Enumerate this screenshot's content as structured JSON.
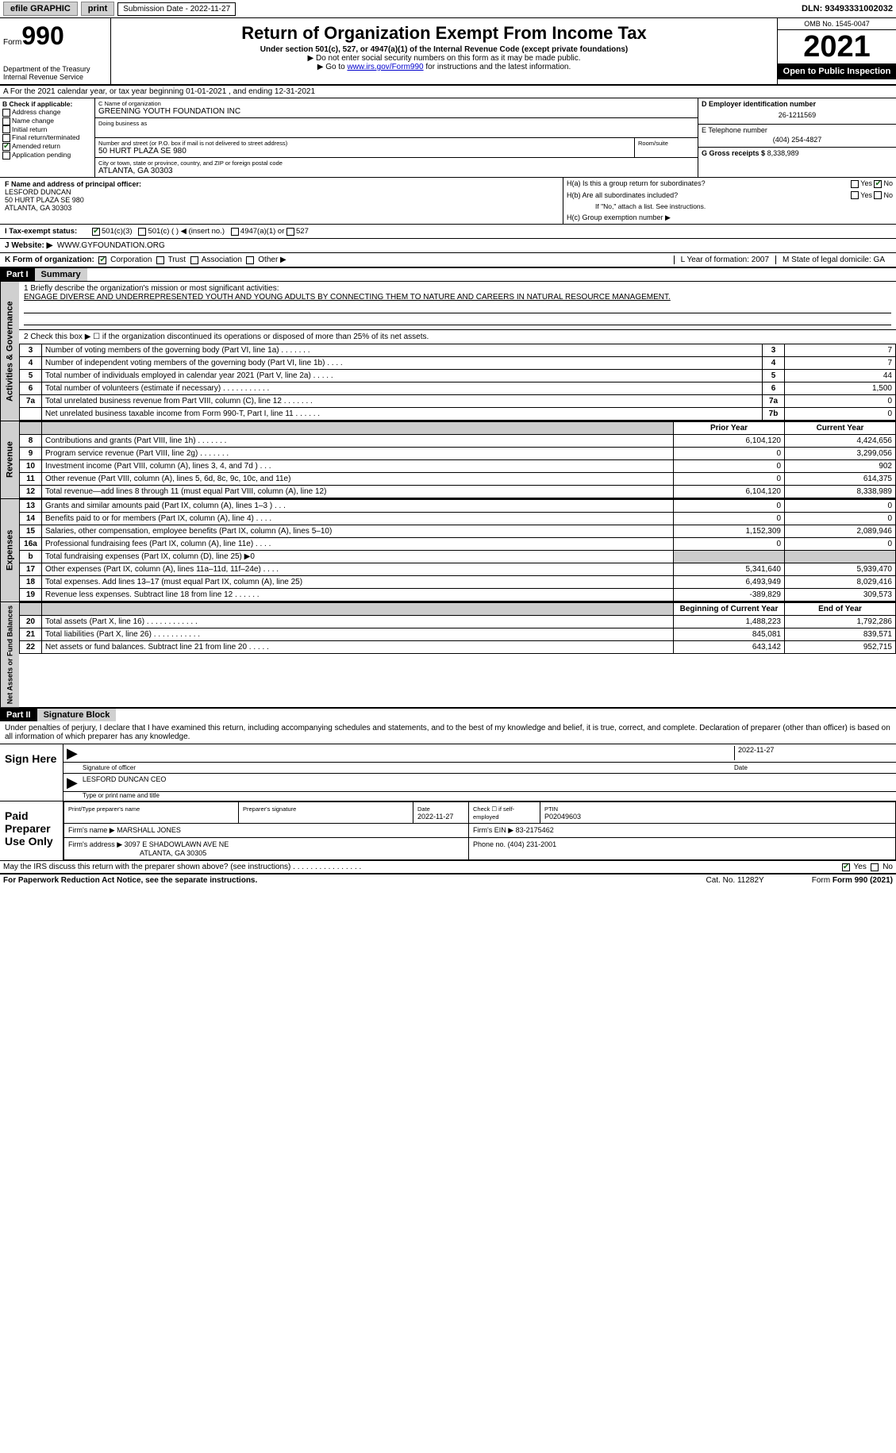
{
  "topbar": {
    "efile": "efile GRAPHIC",
    "print": "print",
    "submission": "Submission Date - 2022-11-27",
    "dln": "DLN: 93493331002032"
  },
  "header": {
    "form_label": "Form",
    "form_num": "990",
    "dept": "Department of the Treasury\nInternal Revenue Service",
    "title": "Return of Organization Exempt From Income Tax",
    "subtitle": "Under section 501(c), 527, or 4947(a)(1) of the Internal Revenue Code (except private foundations)",
    "note1": "▶ Do not enter social security numbers on this form as it may be made public.",
    "note2_pre": "▶ Go to ",
    "note2_link": "www.irs.gov/Form990",
    "note2_post": " for instructions and the latest information.",
    "omb": "OMB No. 1545-0047",
    "year": "2021",
    "inspect": "Open to Public\nInspection"
  },
  "section_a": "A For the 2021 calendar year, or tax year beginning 01-01-2021     , and ending 12-31-2021",
  "block_b": {
    "title": "B Check if applicable:",
    "addr": "Address change",
    "name": "Name change",
    "initial": "Initial return",
    "final": "Final return/terminated",
    "amended": "Amended return",
    "app": "Application pending"
  },
  "block_c": {
    "name_lbl": "C Name of organization",
    "name": "GREENING YOUTH FOUNDATION INC",
    "dba_lbl": "Doing business as",
    "dba": "",
    "street_lbl": "Number and street (or P.O. box if mail is not delivered to street address)",
    "street": "50 HURT PLAZA SE 980",
    "room_lbl": "Room/suite",
    "city_lbl": "City or town, state or province, country, and ZIP or foreign postal code",
    "city": "ATLANTA, GA  30303"
  },
  "block_d": {
    "ein_lbl": "D Employer identification number",
    "ein": "26-1211569",
    "phone_lbl": "E Telephone number",
    "phone": "(404) 254-4827",
    "gross_lbl": "G Gross receipts $",
    "gross": "8,338,989"
  },
  "block_f": {
    "lbl": "F Name and address of principal officer:",
    "name": "LESFORD DUNCAN",
    "street": "50 HURT PLAZA SE 980",
    "city": "ATLANTA, GA  30303"
  },
  "block_h": {
    "ha": "H(a)  Is this a group return for subordinates?",
    "hb": "H(b)  Are all subordinates included?",
    "hb_note": "If \"No,\" attach a list. See instructions.",
    "hc": "H(c)  Group exemption number ▶"
  },
  "tax_status": {
    "lbl": "I    Tax-exempt status:",
    "a": "501(c)(3)",
    "b": "501(c) (  ) ◀ (insert no.)",
    "c": "4947(a)(1) or",
    "d": "527"
  },
  "website": {
    "lbl": "J   Website: ▶",
    "val": "WWW.GYFOUNDATION.ORG"
  },
  "k_org": {
    "lbl": "K Form of organization:",
    "corp": "Corporation",
    "trust": "Trust",
    "assoc": "Association",
    "other": "Other ▶",
    "l": "L Year of formation: 2007",
    "m": "M State of legal domicile: GA"
  },
  "part1": {
    "hdr": "Part I",
    "title": "Summary",
    "line1_lbl": "1   Briefly describe the organization's mission or most significant activities:",
    "mission": "ENGAGE DIVERSE AND UNDERREPRESENTED YOUTH AND YOUNG ADULTS BY CONNECTING THEM TO NATURE AND CAREERS IN NATURAL RESOURCE MANAGEMENT.",
    "line2": "2   Check this box ▶ ☐ if the organization discontinued its operations or disposed of more than 25% of its net assets.",
    "rows_ag": [
      {
        "n": "3",
        "d": "Number of voting members of the governing body (Part VI, line 1a)   .    .    .    .    .    .    .",
        "b": "3",
        "v": "7"
      },
      {
        "n": "4",
        "d": "Number of independent voting members of the governing body (Part VI, line 1b)   .    .    .    .",
        "b": "4",
        "v": "7"
      },
      {
        "n": "5",
        "d": "Total number of individuals employed in calendar year 2021 (Part V, line 2a)   .    .    .    .    .",
        "b": "5",
        "v": "44"
      },
      {
        "n": "6",
        "d": "Total number of volunteers (estimate if necessary)    .    .    .    .    .    .    .    .    .    .    .",
        "b": "6",
        "v": "1,500"
      },
      {
        "n": "7a",
        "d": "Total unrelated business revenue from Part VIII, column (C), line 12   .    .    .    .    .    .    .",
        "b": "7a",
        "v": "0"
      },
      {
        "n": "",
        "d": "Net unrelated business taxable income from Form 990-T, Part I, line 11   .    .    .    .    .    .",
        "b": "7b",
        "v": "0"
      }
    ],
    "col_prior": "Prior Year",
    "col_curr": "Current Year",
    "rows_rev": [
      {
        "n": "8",
        "d": "Contributions and grants (Part VIII, line 1h)   .    .    .    .    .    .    .",
        "p": "6,104,120",
        "c": "4,424,656"
      },
      {
        "n": "9",
        "d": "Program service revenue (Part VIII, line 2g)    .    .    .    .    .    .    .",
        "p": "0",
        "c": "3,299,056"
      },
      {
        "n": "10",
        "d": "Investment income (Part VIII, column (A), lines 3, 4, and 7d )   .    .    .",
        "p": "0",
        "c": "902"
      },
      {
        "n": "11",
        "d": "Other revenue (Part VIII, column (A), lines 5, 6d, 8c, 9c, 10c, and 11e)",
        "p": "0",
        "c": "614,375"
      },
      {
        "n": "12",
        "d": "Total revenue—add lines 8 through 11 (must equal Part VIII, column (A), line 12)",
        "p": "6,104,120",
        "c": "8,338,989"
      }
    ],
    "rows_exp": [
      {
        "n": "13",
        "d": "Grants and similar amounts paid (Part IX, column (A), lines 1–3 )   .    .    .",
        "p": "0",
        "c": "0"
      },
      {
        "n": "14",
        "d": "Benefits paid to or for members (Part IX, column (A), line 4)   .    .    .    .",
        "p": "0",
        "c": "0"
      },
      {
        "n": "15",
        "d": "Salaries, other compensation, employee benefits (Part IX, column (A), lines 5–10)",
        "p": "1,152,309",
        "c": "2,089,946"
      },
      {
        "n": "16a",
        "d": "Professional fundraising fees (Part IX, column (A), line 11e)    .    .    .    .",
        "p": "0",
        "c": "0"
      },
      {
        "n": "b",
        "d": "Total fundraising expenses (Part IX, column (D), line 25) ▶0",
        "p": "",
        "c": "",
        "shade": true
      },
      {
        "n": "17",
        "d": "Other expenses (Part IX, column (A), lines 11a–11d, 11f–24e)   .    .    .    .",
        "p": "5,341,640",
        "c": "5,939,470"
      },
      {
        "n": "18",
        "d": "Total expenses. Add lines 13–17 (must equal Part IX, column (A), line 25)",
        "p": "6,493,949",
        "c": "8,029,416"
      },
      {
        "n": "19",
        "d": "Revenue less expenses. Subtract line 18 from line 12  .    .    .    .    .    .",
        "p": "-389,829",
        "c": "309,573"
      }
    ],
    "col_begin": "Beginning of Current Year",
    "col_end": "End of Year",
    "rows_net": [
      {
        "n": "20",
        "d": "Total assets (Part X, line 16)  .    .    .    .    .    .    .    .    .    .    .    .",
        "p": "1,488,223",
        "c": "1,792,286"
      },
      {
        "n": "21",
        "d": "Total liabilities (Part X, line 26)   .    .    .    .    .    .    .    .    .    .    .",
        "p": "845,081",
        "c": "839,571"
      },
      {
        "n": "22",
        "d": "Net assets or fund balances. Subtract line 21 from line 20   .    .    .    .    .",
        "p": "643,142",
        "c": "952,715"
      }
    ],
    "vtab_ag": "Activities & Governance",
    "vtab_rev": "Revenue",
    "vtab_exp": "Expenses",
    "vtab_net": "Net Assets or\nFund Balances"
  },
  "part2": {
    "hdr": "Part II",
    "title": "Signature Block",
    "decl": "Under penalties of perjury, I declare that I have examined this return, including accompanying schedules and statements, and to the best of my knowledge and belief, it is true, correct, and complete. Declaration of preparer (other than officer) is based on all information of which preparer has any knowledge.",
    "sign_here": "Sign Here",
    "sig_officer": "Signature of officer",
    "sig_date": "2022-11-27",
    "date_lbl": "Date",
    "officer_name": "LESFORD DUNCAN  CEO",
    "name_title_lbl": "Type or print name and title",
    "paid_prep": "Paid Preparer Use Only",
    "prep_name_lbl": "Print/Type preparer's name",
    "prep_sig_lbl": "Preparer's signature",
    "prep_date_lbl": "Date",
    "prep_date": "2022-11-27",
    "check_self": "Check ☐ if self-employed",
    "ptin_lbl": "PTIN",
    "ptin": "P02049603",
    "firm_name_lbl": "Firm's name      ▶",
    "firm_name": "MARSHALL JONES",
    "firm_ein_lbl": "Firm's EIN ▶",
    "firm_ein": "83-2175462",
    "firm_addr_lbl": "Firm's address ▶",
    "firm_addr1": "3097 E SHADOWLAWN AVE NE",
    "firm_addr2": "ATLANTA, GA  30305",
    "firm_phone_lbl": "Phone no.",
    "firm_phone": "(404) 231-2001",
    "discuss": "May the IRS discuss this return with the preparer shown above? (see instructions)    .    .    .    .    .    .    .    .    .    .    .    .    .    .    .    .",
    "yes": "Yes",
    "no": "No"
  },
  "footer": {
    "pra": "For Paperwork Reduction Act Notice, see the separate instructions.",
    "cat": "Cat. No. 11282Y",
    "form": "Form 990 (2021)"
  }
}
